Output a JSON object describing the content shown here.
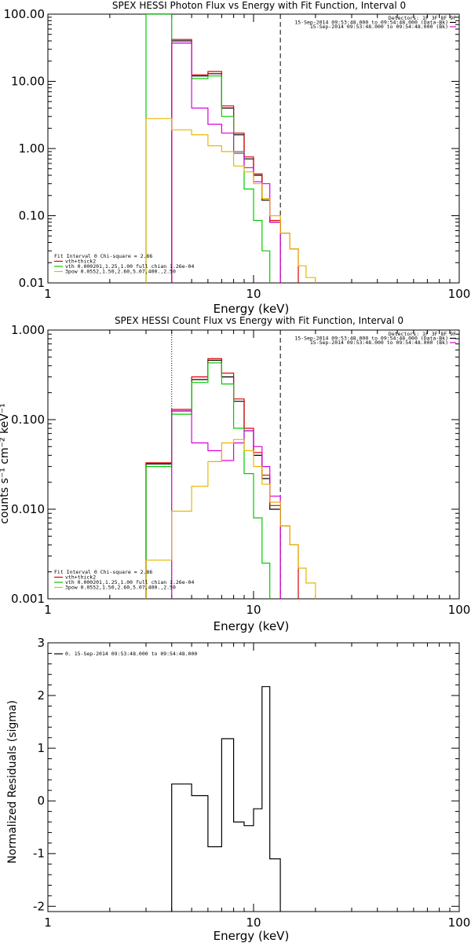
{
  "chart_data": [
    {
      "type": "line",
      "title": "SPEX HESSI Photon Flux vs Energy with Fit Function, Interval 0",
      "xlabel": "Energy (keV)",
      "ylabel": "",
      "xscale": "log",
      "yscale": "log",
      "xlim": [
        1,
        100
      ],
      "ylim": [
        0.01,
        100
      ],
      "xticks": [
        "1",
        "10",
        "100"
      ],
      "yticks": [
        "0.01",
        "0.10",
        "1.00",
        "10.00",
        "100.00"
      ],
      "ytick_values": [
        0.01,
        0.1,
        1,
        10,
        100
      ],
      "fit_lines": {
        "dotted": 4.0,
        "dashed": 13.5
      },
      "legend_right": [
        {
          "text": "Detectors: 1F 3F 8F 9F",
          "color": "#000000",
          "line": false
        },
        {
          "text": "15-Sep-2014 09:53:48.000 to 09:54:48.000 (Data-Bk)",
          "color": "#000000",
          "line": true
        },
        {
          "text": "15-Sep-2014 09:53:48.000 to 09:54:48.000 (Bk)",
          "color": "#dd00dd",
          "line": true
        }
      ],
      "legend_left": [
        {
          "text": "Fit Interval 0   Chi-square = 2.86",
          "color": "#000000",
          "line": false
        },
        {
          "text": "vth+thick2",
          "color": "#dd0000",
          "line": true
        },
        {
          "text": "vth 0.000201,1.25,1.00  full chian 1.26e-04",
          "color": "#00cc00",
          "line": true
        },
        {
          "text": "3pow 0.0552,1.50,2.60,5.07,400.,2.50",
          "color": "#e6b800",
          "line": true
        }
      ],
      "series": [
        {
          "color": "#000000",
          "edges": [
            4,
            5,
            6,
            7,
            8,
            9,
            10,
            11,
            12,
            13.5
          ],
          "values": [
            40,
            12,
            13,
            4.0,
            1.6,
            0.7,
            0.4,
            0.17,
            0.08
          ]
        },
        {
          "color": "#dd0000",
          "edges": [
            4,
            5,
            6,
            7,
            8,
            9,
            10,
            11,
            12,
            13.5,
            15,
            16.5
          ],
          "values": [
            42,
            12.5,
            14,
            4.3,
            1.7,
            0.75,
            0.42,
            0.18,
            0.085,
            0.055,
            0.032
          ]
        },
        {
          "color": "#00cc00",
          "edges": [
            3,
            4,
            5,
            6,
            7,
            8,
            9,
            10,
            11,
            12
          ],
          "values": [
            100,
            37,
            11,
            12,
            3.0,
            0.9,
            0.25,
            0.085,
            0.03
          ]
        },
        {
          "color": "#dd00dd",
          "edges": [
            4,
            5,
            6,
            7,
            8,
            9,
            10,
            11,
            12,
            13.5
          ],
          "values": [
            37,
            4.0,
            2.3,
            1.7,
            0.85,
            0.52,
            0.32,
            0.3,
            0.08
          ]
        },
        {
          "color": "#e6b800",
          "edges": [
            3,
            4,
            5,
            6,
            7,
            8,
            9,
            10,
            11,
            12,
            13.5,
            15,
            16.5,
            18,
            20
          ],
          "values": [
            2.8,
            1.9,
            1.6,
            1.1,
            0.9,
            0.55,
            0.45,
            0.3,
            0.18,
            0.1,
            0.055,
            0.032,
            0.018,
            0.012
          ]
        }
      ]
    },
    {
      "type": "line",
      "title": "SPEX HESSI Count Flux vs Energy with Fit Function, Interval 0",
      "xlabel": "Energy (keV)",
      "ylabel": "counts s⁻¹ cm⁻² keV⁻¹",
      "xscale": "log",
      "yscale": "log",
      "xlim": [
        1,
        100
      ],
      "ylim": [
        0.001,
        1
      ],
      "xticks": [
        "1",
        "10",
        "100"
      ],
      "yticks": [
        "0.001",
        "0.010",
        "0.100",
        "1.000"
      ],
      "ytick_values": [
        0.001,
        0.01,
        0.1,
        1
      ],
      "fit_lines": {
        "dotted": 4.0,
        "dashed": 13.5
      },
      "legend_right": [
        {
          "text": "Detectors: 1F 3F 8F 9F",
          "color": "#000000",
          "line": false
        },
        {
          "text": "15-Sep-2014 09:53:48.000 to 09:54:48.000 (Data-Bk)",
          "color": "#000000",
          "line": true
        },
        {
          "text": "15-Sep-2014 09:53:48.000 to 09:54:48.000 (Bk)",
          "color": "#dd00dd",
          "line": true
        }
      ],
      "legend_left": [
        {
          "text": "Fit Interval 0   Chi-square = 2.86",
          "color": "#000000",
          "line": false
        },
        {
          "text": "vth+thick2",
          "color": "#dd0000",
          "line": true
        },
        {
          "text": "vth 0.000201,1.25,1.00  full chian 1.26e-04",
          "color": "#00cc00",
          "line": true
        },
        {
          "text": "3pow 0.0552,1.50,2.60,5.07,400.,2.50",
          "color": "#e6b800",
          "line": true
        }
      ],
      "series": [
        {
          "color": "#000000",
          "edges": [
            3,
            4,
            5,
            6,
            7,
            8,
            9,
            10,
            11,
            12,
            13.5
          ],
          "values": [
            0.032,
            0.125,
            0.28,
            0.46,
            0.3,
            0.16,
            0.075,
            0.04,
            0.022,
            0.01
          ]
        },
        {
          "color": "#dd0000",
          "edges": [
            3,
            4,
            5,
            6,
            7,
            8,
            9,
            10,
            11,
            12,
            13.5,
            15,
            16.5
          ],
          "values": [
            0.033,
            0.13,
            0.3,
            0.48,
            0.33,
            0.17,
            0.08,
            0.043,
            0.024,
            0.011,
            0.0065,
            0.004
          ]
        },
        {
          "color": "#00cc00",
          "edges": [
            3,
            4,
            5,
            6,
            7,
            8,
            9,
            10,
            11,
            12
          ],
          "values": [
            0.03,
            0.115,
            0.26,
            0.43,
            0.25,
            0.08,
            0.025,
            0.008,
            0.0025
          ]
        },
        {
          "color": "#dd00dd",
          "edges": [
            4,
            5,
            6,
            7,
            8,
            9,
            10,
            11,
            12,
            13.5
          ],
          "values": [
            0.125,
            0.055,
            0.045,
            0.035,
            0.055,
            0.075,
            0.05,
            0.03,
            0.014
          ]
        },
        {
          "color": "#e6b800",
          "edges": [
            3,
            4,
            5,
            6,
            7,
            8,
            9,
            10,
            11,
            12,
            13.5,
            15,
            16.5,
            18,
            20
          ],
          "values": [
            0.0027,
            0.0095,
            0.018,
            0.034,
            0.055,
            0.06,
            0.045,
            0.03,
            0.019,
            0.012,
            0.0065,
            0.004,
            0.0022,
            0.0015
          ]
        }
      ]
    },
    {
      "type": "line",
      "title": "",
      "xlabel": "Energy (keV)",
      "ylabel": "Normalized Residuals (sigma)",
      "xscale": "log",
      "yscale": "linear",
      "xlim": [
        1,
        100
      ],
      "ylim": [
        -2.1,
        3
      ],
      "xticks": [
        "1",
        "10",
        "100"
      ],
      "yticks": [
        "-2",
        "-1",
        "0",
        "1",
        "2",
        "3"
      ],
      "ytick_values": [
        -2,
        -1,
        0,
        1,
        2,
        3
      ],
      "legend_left": [
        {
          "text": "0. 15-Sep-2014 09:53:48.000 to 09:54:48.000",
          "color": "#000000",
          "line": true
        }
      ],
      "series": [
        {
          "color": "#000000",
          "edges": [
            4,
            5,
            6,
            7,
            8,
            9,
            10,
            11,
            12,
            13.5
          ],
          "values": [
            0.32,
            0.1,
            -0.87,
            1.18,
            -0.4,
            -0.47,
            -0.15,
            2.17,
            -1.1
          ]
        }
      ]
    }
  ]
}
